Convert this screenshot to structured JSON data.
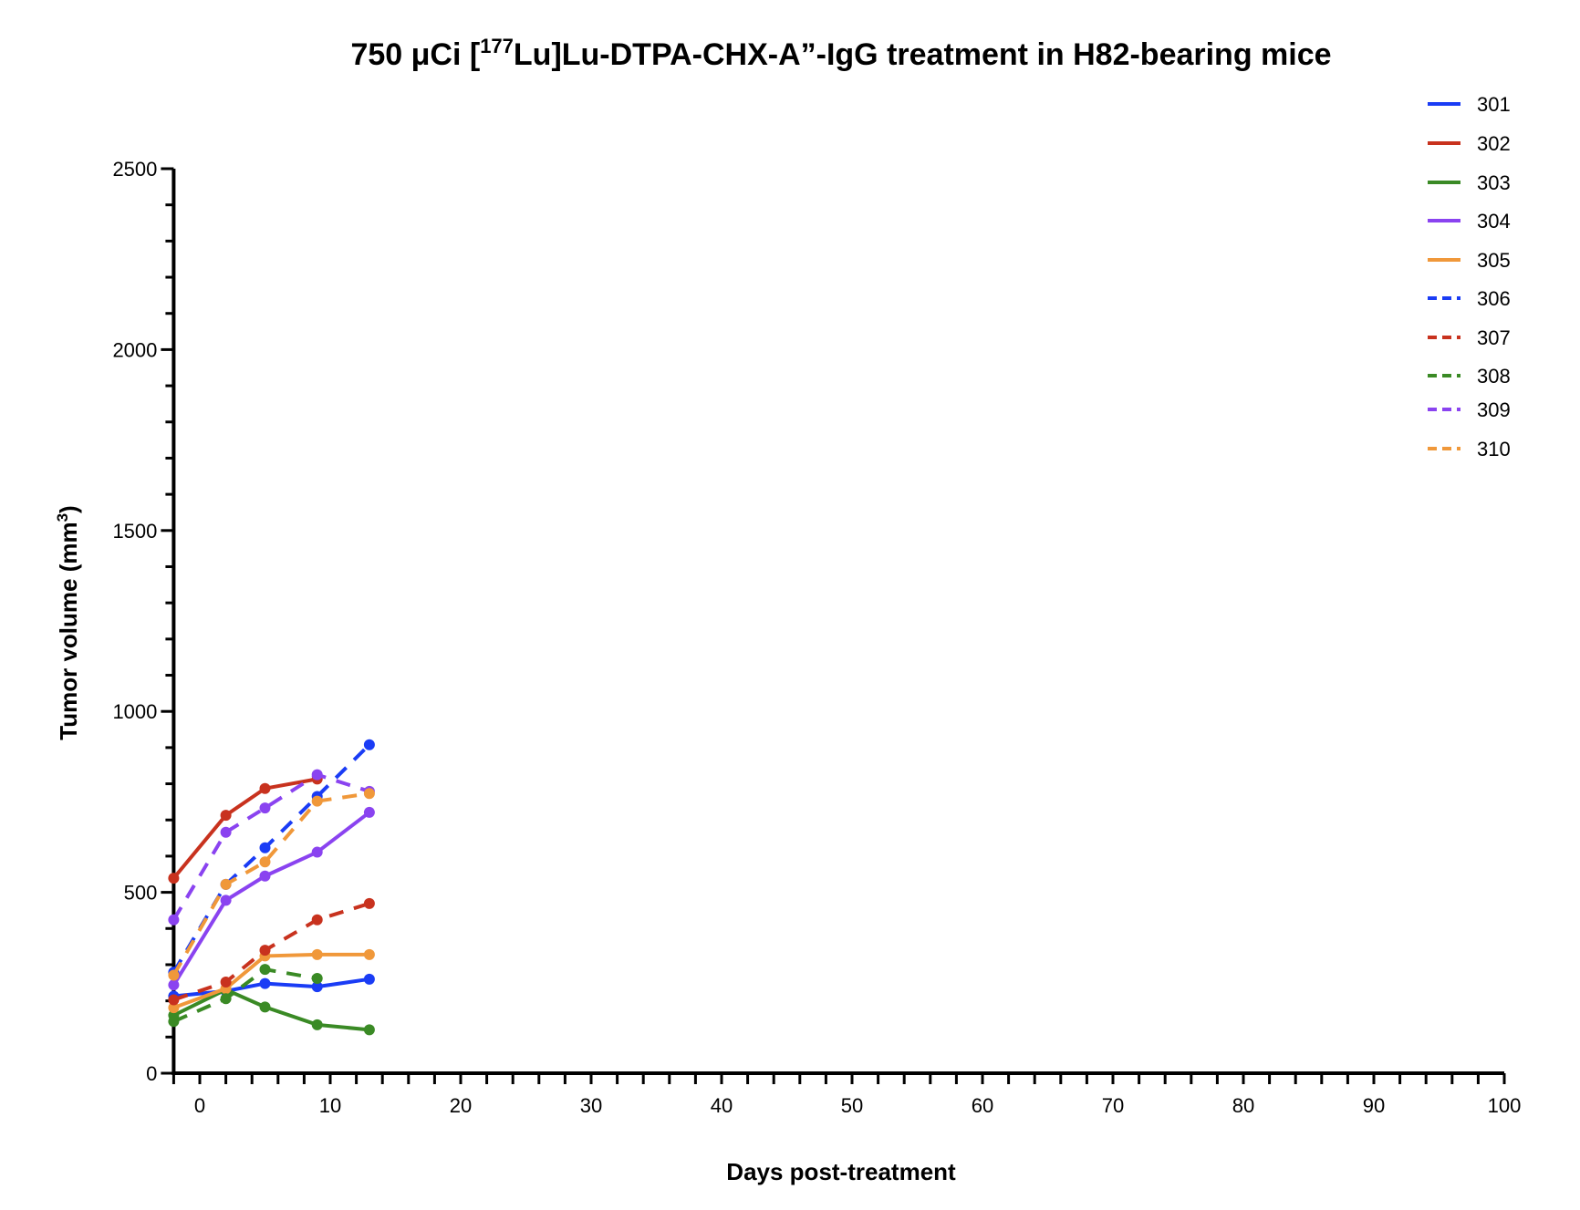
{
  "chart_data": {
    "type": "line",
    "title": "750 μCi [177Lu]Lu-DTPA-CHX-A”-IgG treatment in H82-bearing mice",
    "title_parts": {
      "pre": "750 μCi [",
      "sup": "177",
      "post": "Lu]Lu-DTPA-CHX-A”-IgG treatment in H82-bearing mice"
    },
    "xlabel": "Days post-treatment",
    "ylabel": "Tumor volume (mm3)",
    "ylabel_parts": {
      "pre": "Tumor volume (mm",
      "sup": "3",
      "post": ")"
    },
    "xlim": [
      -2,
      100
    ],
    "ylim": [
      0,
      2500
    ],
    "x_ticks": [
      0,
      10,
      20,
      30,
      40,
      50,
      60,
      70,
      80,
      90,
      100
    ],
    "y_ticks": [
      0,
      500,
      1000,
      1500,
      2000,
      2500
    ],
    "grid": false,
    "legend_position": "top-right",
    "series": [
      {
        "name": "301",
        "color": "#1a3cf5",
        "dash": "solid",
        "x": [
          -2,
          2,
          5,
          9,
          13
        ],
        "y": [
          213,
          227,
          248,
          239,
          260
        ]
      },
      {
        "name": "302",
        "color": "#c8321e",
        "dash": "solid",
        "x": [
          -2,
          2,
          5,
          9
        ],
        "y": [
          539,
          713,
          787,
          813
        ]
      },
      {
        "name": "303",
        "color": "#3a8a25",
        "dash": "solid",
        "x": [
          -2,
          2,
          5,
          9,
          13
        ],
        "y": [
          160,
          231,
          183,
          134,
          120
        ]
      },
      {
        "name": "304",
        "color": "#8a43f0",
        "dash": "solid",
        "x": [
          -2,
          2,
          5,
          9,
          13
        ],
        "y": [
          244,
          478,
          545,
          611,
          721
        ]
      },
      {
        "name": "305",
        "color": "#f0983a",
        "dash": "solid",
        "x": [
          -2,
          2,
          5,
          9,
          13
        ],
        "y": [
          181,
          234,
          324,
          328,
          328
        ]
      },
      {
        "name": "306",
        "color": "#1a3cf5",
        "dash": "dashed",
        "x": [
          -2,
          2,
          5,
          9,
          13
        ],
        "y": [
          279,
          522,
          623,
          765,
          908
        ]
      },
      {
        "name": "307",
        "color": "#c8321e",
        "dash": "dashed",
        "x": [
          -2,
          2,
          5,
          9,
          13
        ],
        "y": [
          203,
          252,
          340,
          424,
          469
        ]
      },
      {
        "name": "308",
        "color": "#3a8a25",
        "dash": "dashed",
        "x": [
          -2,
          2,
          5,
          9
        ],
        "y": [
          143,
          206,
          287,
          262
        ]
      },
      {
        "name": "309",
        "color": "#8a43f0",
        "dash": "dashed",
        "x": [
          -2,
          2,
          5,
          9,
          13
        ],
        "y": [
          424,
          666,
          733,
          825,
          779
        ]
      },
      {
        "name": "310",
        "color": "#f0983a",
        "dash": "dashed",
        "x": [
          -2,
          2,
          5,
          9,
          13
        ],
        "y": [
          271,
          522,
          584,
          752,
          773
        ]
      }
    ]
  }
}
